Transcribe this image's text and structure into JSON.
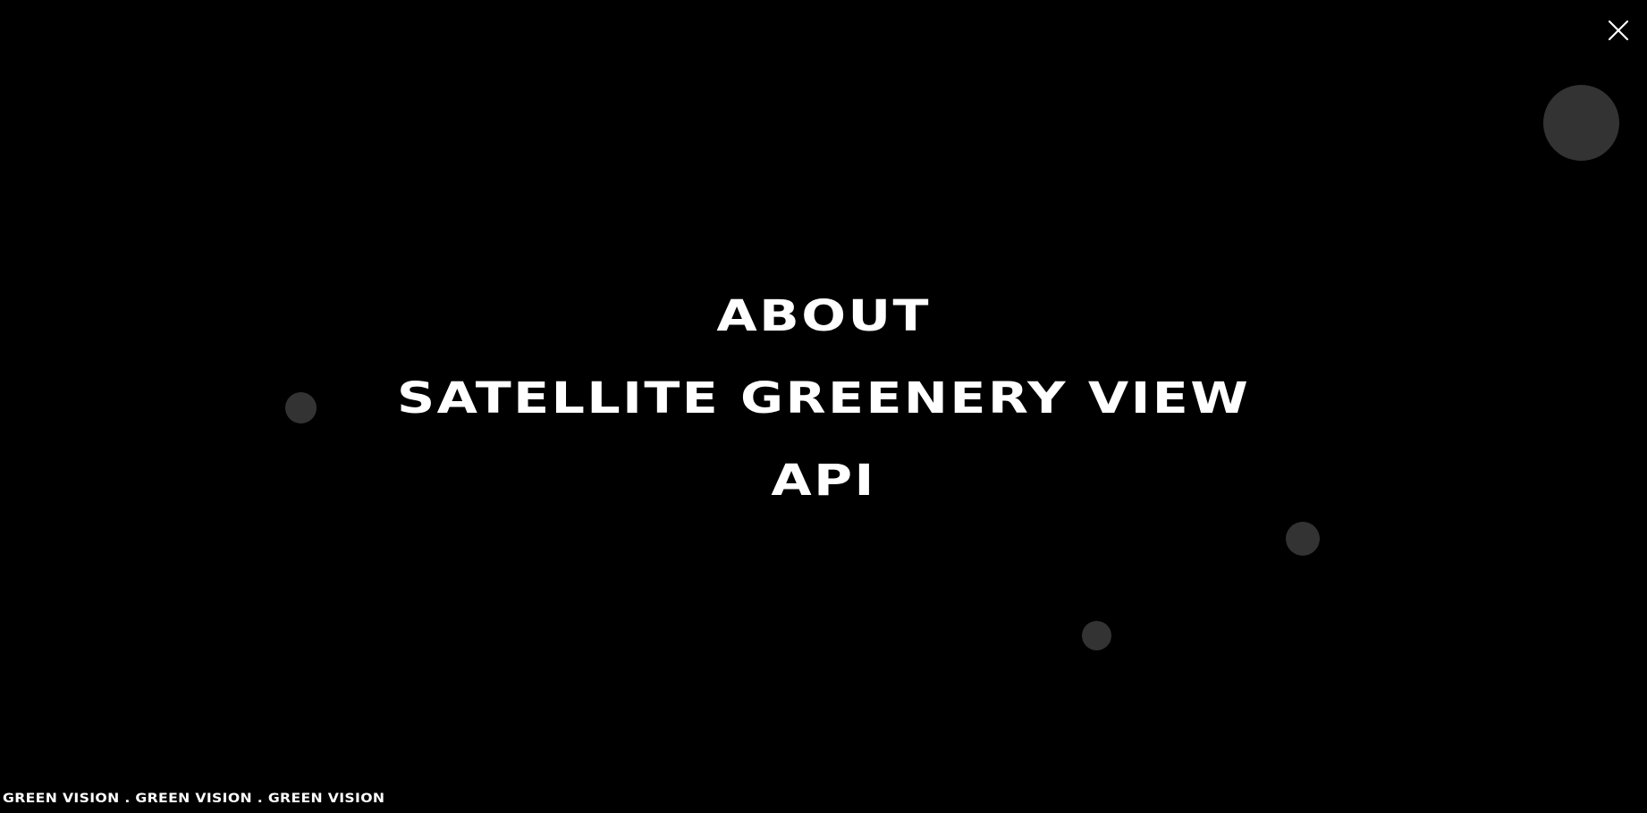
{
  "menu": {
    "items": [
      {
        "label": "ABOUT"
      },
      {
        "label": "SATELLITE GREENERY VIEW"
      },
      {
        "label": "API"
      }
    ]
  },
  "footer": {
    "marquee_text": "GREEN VISION . GREEN VISION . GREEN VISION"
  },
  "icons": {
    "close": "close-icon"
  },
  "colors": {
    "background": "#000000",
    "text": "#ffffff",
    "dots": "#333333"
  }
}
